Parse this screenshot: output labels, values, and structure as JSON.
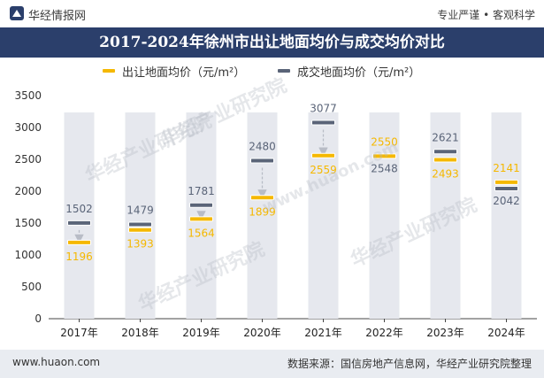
{
  "header": {
    "brand": "华经情报网",
    "tagline": "专业严谨 • 客观科学"
  },
  "chart_data": {
    "type": "bar",
    "title": "2017-2024年徐州市出让地面均价与成交均价对比",
    "categories": [
      "2017年",
      "2018年",
      "2019年",
      "2020年",
      "2021年",
      "2022年",
      "2023年",
      "2024年"
    ],
    "series": [
      {
        "name": "出让地面均价（元/m²）",
        "color": "#f5b800",
        "values": [
          1196,
          1393,
          1564,
          1899,
          2559,
          2550,
          2493,
          2141
        ]
      },
      {
        "name": "成交地面均价（元/m²）",
        "color": "#5a6478",
        "values": [
          1502,
          1479,
          1781,
          2480,
          3077,
          2548,
          2621,
          2042
        ]
      }
    ],
    "ylim": [
      0,
      3500
    ],
    "yticks": [
      0,
      500,
      1000,
      1500,
      2000,
      2500,
      3000,
      3500
    ],
    "xlabel": "",
    "ylabel": "",
    "legend_position": "top"
  },
  "footer": {
    "site": "www.huaon.com",
    "source": "数据来源：国信房地产信息网，华经产业研究院整理"
  },
  "watermarks": [
    "华经产业研究院",
    "华经产业研究院",
    "华经产业研究院",
    "华经产业研究院",
    "www.huaon.com"
  ],
  "colors": {
    "title_bg": "#2b3f6b",
    "column_bg": "#e6e8ee",
    "arrow": "#b8bcc6"
  }
}
